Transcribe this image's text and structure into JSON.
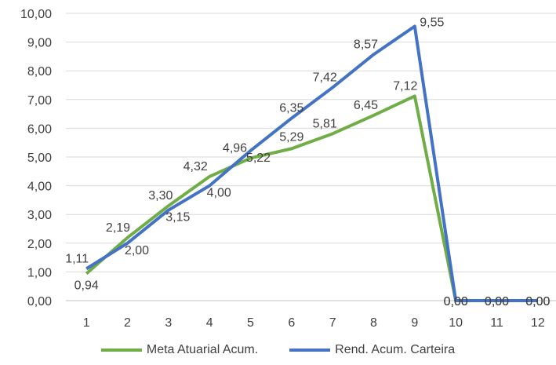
{
  "chart_data": {
    "type": "line",
    "x": [
      1,
      2,
      3,
      4,
      5,
      6,
      7,
      8,
      9,
      10,
      11,
      12
    ],
    "ylim": [
      0,
      10
    ],
    "yticks": [
      "0,00",
      "1,00",
      "2,00",
      "3,00",
      "4,00",
      "5,00",
      "6,00",
      "7,00",
      "8,00",
      "9,00",
      "10,00"
    ],
    "xticks": [
      "1",
      "2",
      "3",
      "4",
      "5",
      "6",
      "7",
      "8",
      "9",
      "10",
      "11",
      "12"
    ],
    "grid": "horizontal",
    "legend_position": "bottom",
    "series": [
      {
        "name": "Meta Atuarial Acum.",
        "color": "#70ad47",
        "values": [
          0.94,
          2.19,
          3.3,
          4.32,
          4.96,
          5.29,
          5.81,
          6.45,
          7.12,
          0.0,
          0.0,
          0.0
        ],
        "labels": [
          "0,94",
          "2,19",
          "3,30",
          "4,32",
          "4,96",
          "5,29",
          "5,81",
          "6,45",
          "7,12",
          "0,00",
          "0,00",
          "0,00"
        ]
      },
      {
        "name": "Rend. Acum. Carteira",
        "color": "#4472c4",
        "values": [
          1.11,
          2.0,
          3.15,
          4.0,
          5.22,
          6.35,
          7.42,
          8.57,
          9.55,
          0.0,
          0.0,
          0.0
        ],
        "labels": [
          "1,11",
          "2,00",
          "3,15",
          "4,00",
          "5,22",
          "6,35",
          "7,42",
          "8,57",
          "9,55",
          "0,00",
          "0,00",
          "0,00"
        ]
      }
    ]
  }
}
